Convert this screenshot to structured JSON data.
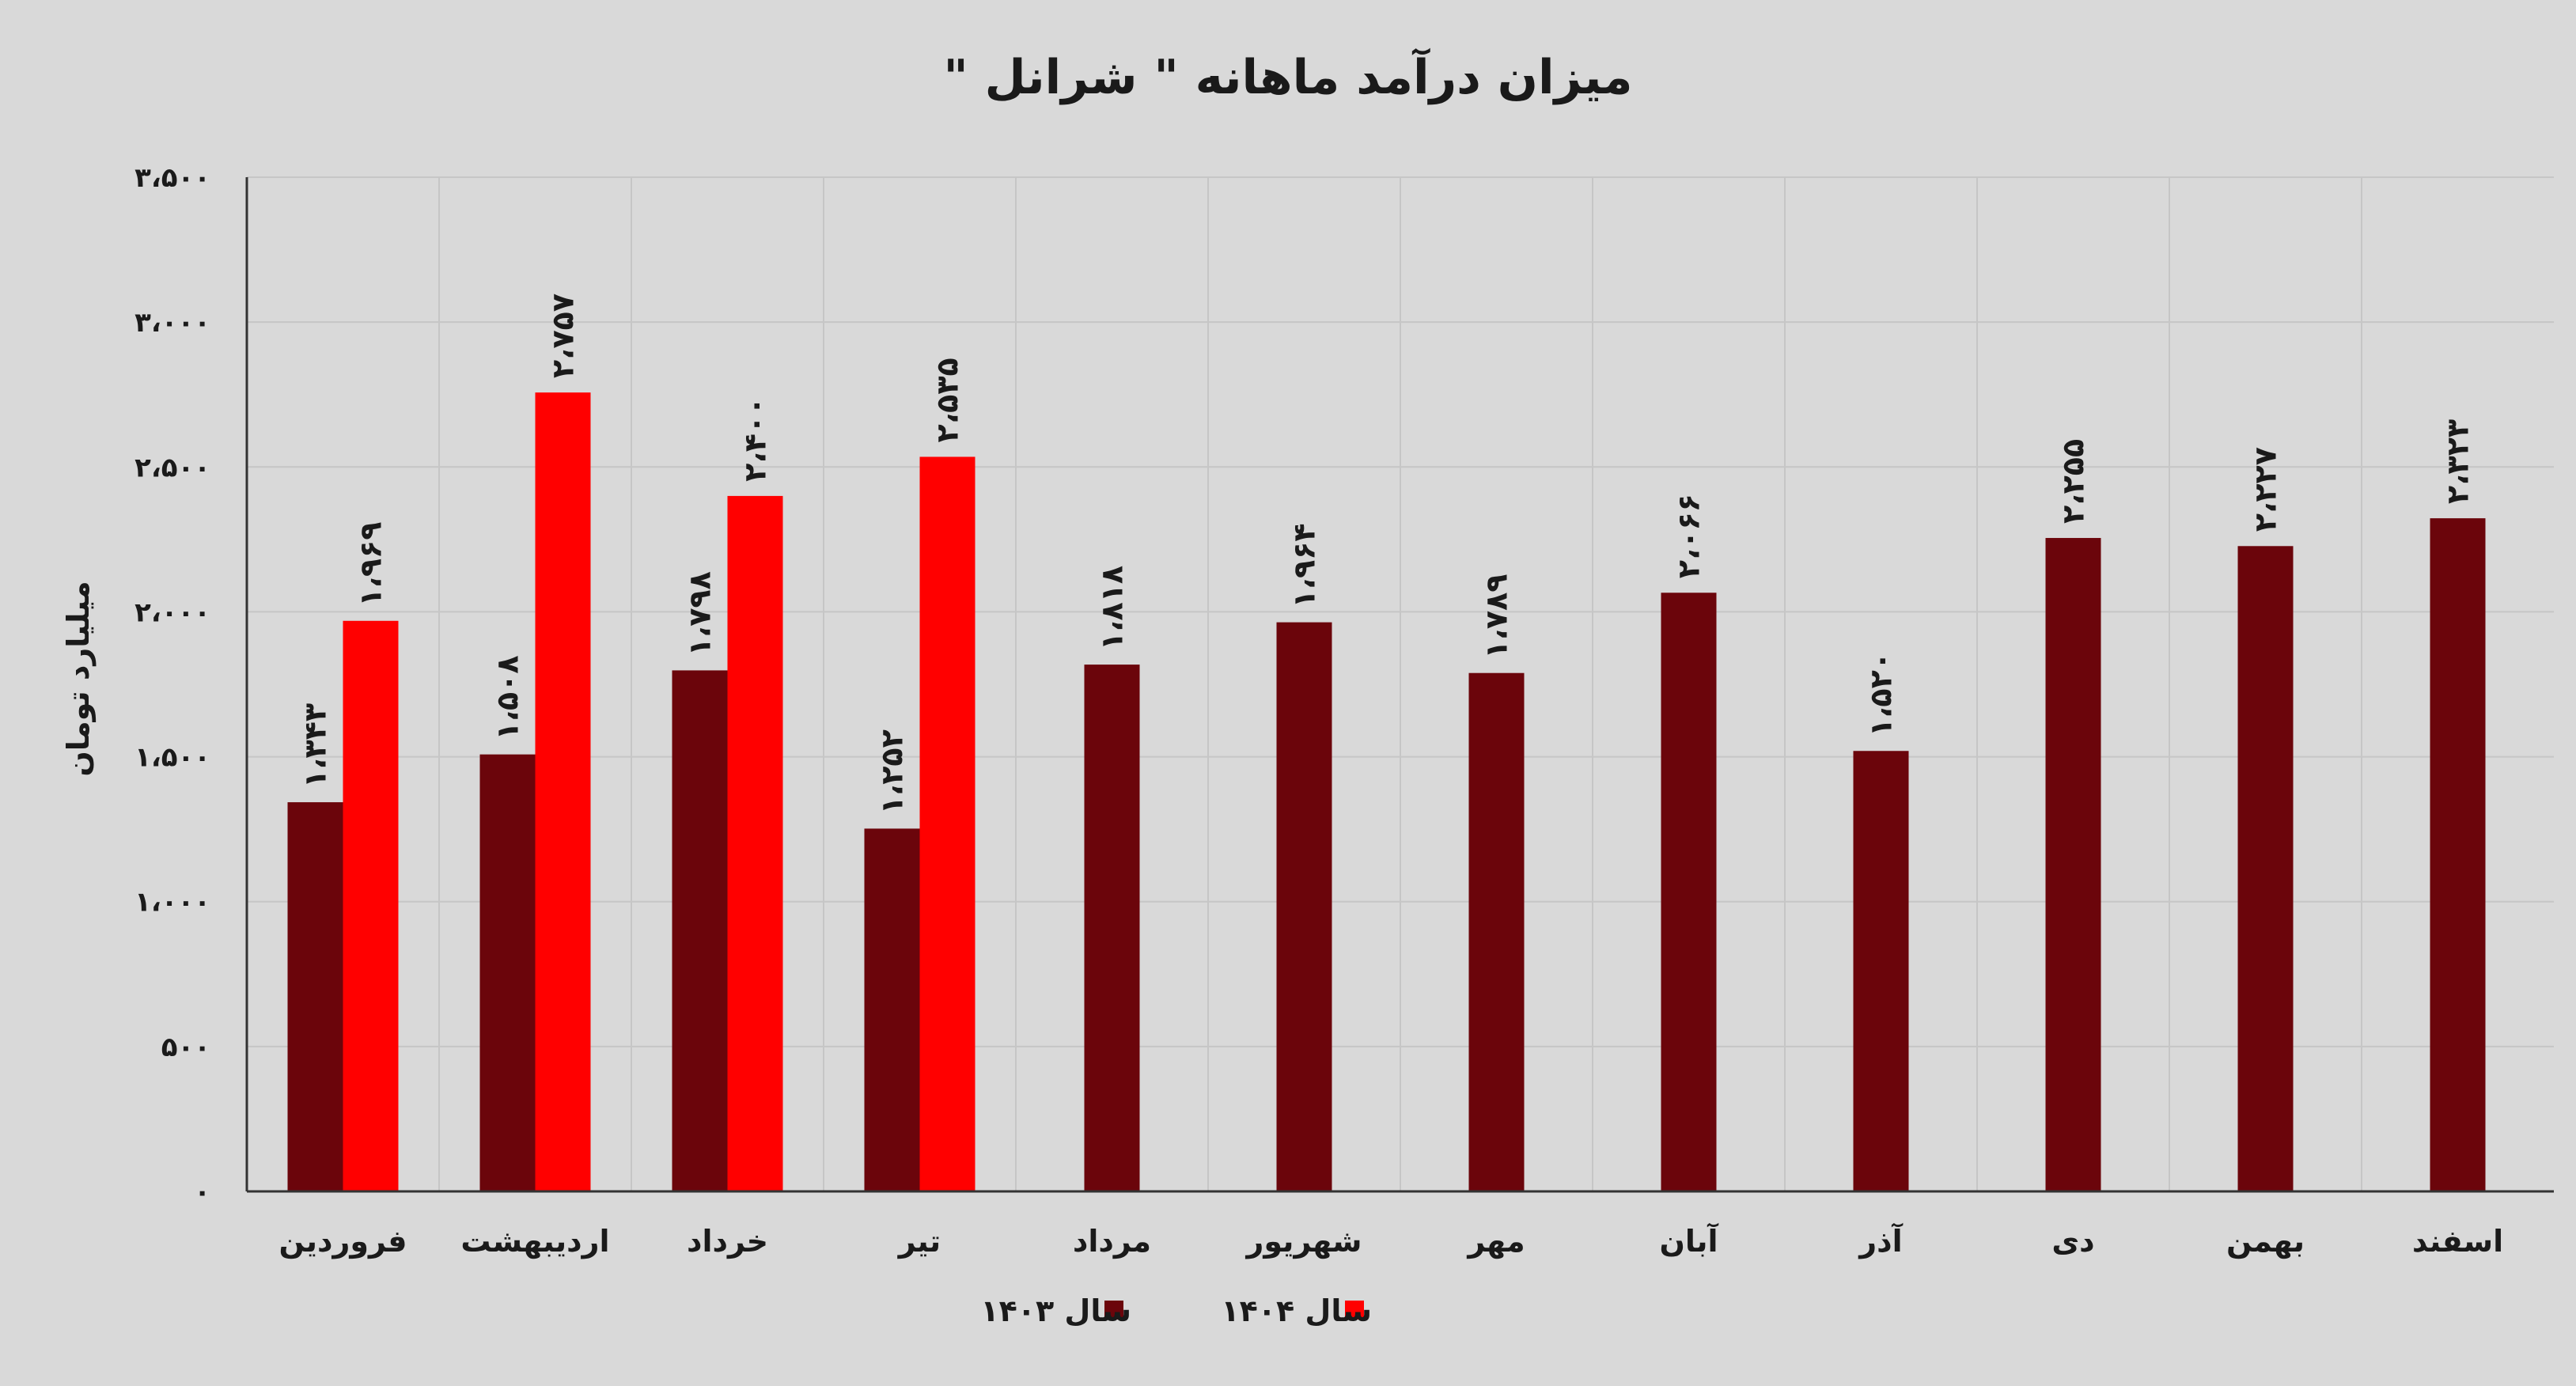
{
  "chart_data": {
    "type": "bar",
    "title": "میزان درآمد ماهانه \" شرانل \"",
    "ylabel": "میلیارد تومان",
    "xlabel": "",
    "ylim": [
      0,
      3500
    ],
    "yticks": [
      0,
      500,
      1000,
      1500,
      2000,
      2500,
      3000,
      3500
    ],
    "ytick_labels": [
      "۰",
      "۵۰۰",
      "۱،۰۰۰",
      "۱،۵۰۰",
      "۲،۰۰۰",
      "۲،۵۰۰",
      "۳،۰۰۰",
      "۳،۵۰۰"
    ],
    "grid": true,
    "legend_position": "bottom",
    "categories": [
      "فروردین",
      "اردیبهشت",
      "خرداد",
      "تیر",
      "مرداد",
      "شهریور",
      "مهر",
      "آبان",
      "آذر",
      "دی",
      "بهمن",
      "اسفند"
    ],
    "series": [
      {
        "name": "سال ۱۴۰۳",
        "color": "#6b050b",
        "values": [
          1343,
          1508,
          1798,
          1252,
          1818,
          1964,
          1789,
          2066,
          1520,
          2255,
          2227,
          2323
        ],
        "labels": [
          "۱،۳۴۳",
          "۱،۵۰۸",
          "۱،۷۹۸",
          "۱،۲۵۲",
          "۱،۸۱۸",
          "۱،۹۶۴",
          "۱،۷۸۹",
          "۲،۰۶۶",
          "۱،۵۲۰",
          "۲،۲۵۵",
          "۲،۲۲۷",
          "۲،۳۲۳"
        ]
      },
      {
        "name": "سال ۱۴۰۴",
        "color": "#ff0000",
        "values": [
          1969,
          2757,
          2400,
          2535,
          null,
          null,
          null,
          null,
          null,
          null,
          null,
          null
        ],
        "labels": [
          "۱،۹۶۹",
          "۲،۷۵۷",
          "۲،۴۰۰",
          "۲،۵۳۵",
          null,
          null,
          null,
          null,
          null,
          null,
          null,
          null
        ]
      }
    ]
  },
  "colors": {
    "background": "#d9d9d9",
    "grid": "#c6c6c6",
    "axis": "#333333"
  }
}
